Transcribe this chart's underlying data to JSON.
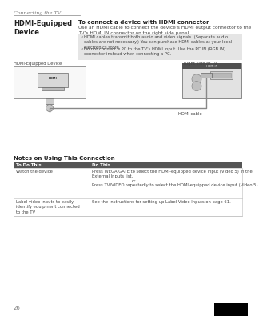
{
  "page_header": "Connecting the TV",
  "page_number": "26",
  "section_title": "HDMI-Equipped\nDevice",
  "connection_title": "To connect a device with HDMI connector",
  "connection_desc": "Use an HDMI cable to connect the device’s HDMI output connector to the\nTV’s HDMI IN connector on the right side panel.",
  "note1": "HDMI cables transmit both audio and video signals. (Separate audio\ncables are not necessary.) You can purchase HDMI cables at your local\nelectronics store.",
  "note2": "Do not connect a PC to the TV’s HDMI input. Use the PC IN (RGB IN)\nconnector instead when connecting a PC.",
  "diagram_left_label": "HDMI-Equipped Device",
  "diagram_right_label": "Right side of TV",
  "cable_label": "HDMI cable",
  "notes_title": "Notes on Using This Connection",
  "table_header1": "To Do This ...",
  "table_header2": "Do This ...",
  "row1_col1": "Watch the device",
  "row1_col2_a": "Press WEGA GATE to select the HDMI-equipped device input (Video 5) in the\nExternal Inputs list.",
  "row1_col2_b": "or",
  "row1_col2_c": "Press TV/VIDEO repeatedly to select the HDMI-equipped device input (Video 5).",
  "row2_col1": "Label video inputs to easily\nidentify equipment connected\nto the TV",
  "row2_col2": "See the instructions for setting up Label Video Inputs on page 61.",
  "bg_color": "#ffffff",
  "header_color": "#777777",
  "note_bg_color": "#e5e5e5",
  "table_header_bg": "#555555",
  "table_header_fg": "#ffffff",
  "divider_color": "#bbbbbb",
  "text_color": "#444444",
  "light_text": "#666666"
}
